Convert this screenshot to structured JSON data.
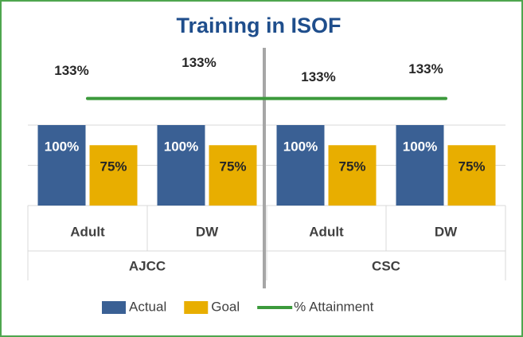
{
  "chart_data": {
    "type": "bar_line",
    "title": "Training in ISOF",
    "categories": [
      "Adult",
      "DW",
      "Adult",
      "DW"
    ],
    "groups": [
      "AJCC",
      "CSC"
    ],
    "series": [
      {
        "name": "Actual",
        "type": "bar",
        "color": "#3a6094",
        "values": [
          100,
          100,
          100,
          100
        ],
        "value_labels": [
          "100%",
          "100%",
          "100%",
          "100%"
        ]
      },
      {
        "name": "Goal",
        "type": "bar",
        "color": "#e8ae00",
        "values": [
          75,
          75,
          75,
          75
        ],
        "value_labels": [
          "75%",
          "75%",
          "75%",
          "75%"
        ]
      },
      {
        "name": "% Attainment",
        "type": "line",
        "color": "#3c9a3c",
        "values": [
          133,
          133,
          133,
          133
        ],
        "value_labels": [
          "133%",
          "133%",
          "133%",
          "133%"
        ]
      }
    ],
    "ylim": [
      0,
      200
    ],
    "yticks": [
      0,
      50,
      100
    ],
    "grid": true,
    "legend": "bottom"
  }
}
